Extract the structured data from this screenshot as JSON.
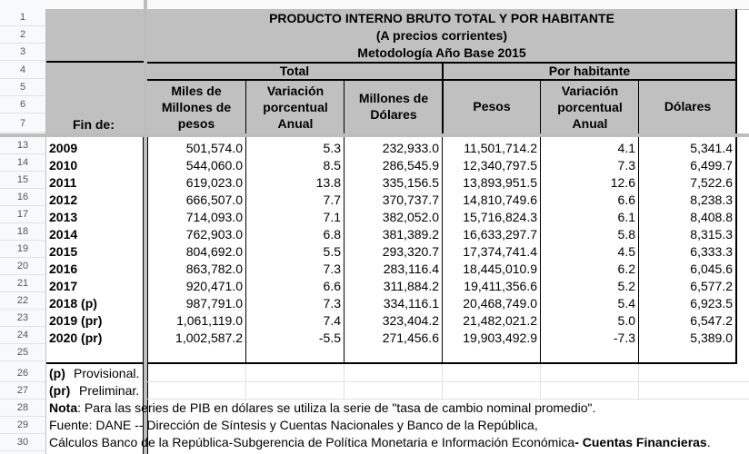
{
  "header": {
    "title1": "PRODUCTO INTERNO BRUTO TOTAL Y POR HABITANTE",
    "title2": "(A precios corrientes)",
    "title3": "Metodología Año Base 2015",
    "group_total": "Total",
    "group_per_capita": "Por habitante",
    "col_year": "Fin de:",
    "col_miles_1": "Miles de",
    "col_miles_2": "Millones de",
    "col_miles_3": "pesos",
    "col_var_1": "Variación",
    "col_var_2": "porcentual",
    "col_var_3": "Anual",
    "col_musd_1": "Millones de",
    "col_musd_2": "Dólares",
    "col_pesos": "Pesos",
    "col_var2_1": "Variación",
    "col_var2_2": "porcentual",
    "col_var2_3": "Anual",
    "col_usd": "Dólares"
  },
  "row_numbers_top": [
    "1",
    "2",
    "3",
    "4",
    "5",
    "6",
    "7"
  ],
  "row_numbers_bottom": [
    "13",
    "14",
    "15",
    "16",
    "17",
    "18",
    "19",
    "20",
    "21",
    "22",
    "23",
    "24",
    "25",
    "26",
    "27",
    "28",
    "29",
    "30"
  ],
  "table": {
    "rows": [
      {
        "year": "2009",
        "miles": "501,574.0",
        "var": "5.3",
        "musd": "232,933.0",
        "pesos": "11,501,714.2",
        "var2": "4.1",
        "usd": "5,341.4"
      },
      {
        "year": "2010",
        "miles": "544,060.0",
        "var": "8.5",
        "musd": "286,545.9",
        "pesos": "12,340,797.5",
        "var2": "7.3",
        "usd": "6,499.7"
      },
      {
        "year": "2011",
        "miles": "619,023.0",
        "var": "13.8",
        "musd": "335,156.5",
        "pesos": "13,893,951.5",
        "var2": "12.6",
        "usd": "7,522.6"
      },
      {
        "year": "2012",
        "miles": "666,507.0",
        "var": "7.7",
        "musd": "370,737.7",
        "pesos": "14,810,749.6",
        "var2": "6.6",
        "usd": "8,238.3"
      },
      {
        "year": "2013",
        "miles": "714,093.0",
        "var": "7.1",
        "musd": "382,052.0",
        "pesos": "15,716,824.3",
        "var2": "6.1",
        "usd": "8,408.8"
      },
      {
        "year": "2014",
        "miles": "762,903.0",
        "var": "6.8",
        "musd": "381,389.2",
        "pesos": "16,633,297.7",
        "var2": "5.8",
        "usd": "8,315.3"
      },
      {
        "year": "2015",
        "miles": "804,692.0",
        "var": "5.5",
        "musd": "293,320.7",
        "pesos": "17,374,741.4",
        "var2": "4.5",
        "usd": "6,333.3"
      },
      {
        "year": "2016",
        "miles": "863,782.0",
        "var": "7.3",
        "musd": "283,116.4",
        "pesos": "18,445,010.9",
        "var2": "6.2",
        "usd": "6,045.6"
      },
      {
        "year": "2017",
        "miles": "920,471.0",
        "var": "6.6",
        "musd": "311,884.2",
        "pesos": "19,411,356.6",
        "var2": "5.2",
        "usd": "6,577.2"
      },
      {
        "year": "2018 (p)",
        "miles": "987,791.0",
        "var": "7.3",
        "musd": "334,116.1",
        "pesos": "20,468,749.0",
        "var2": "5.4",
        "usd": "6,923.5"
      },
      {
        "year": "2019 (pr)",
        "miles": "1,061,119.0",
        "var": "7.4",
        "musd": "323,404.2",
        "pesos": "21,482,021.2",
        "var2": "5.0",
        "usd": "6,547.2"
      },
      {
        "year": "2020 (pr)",
        "miles": "1,002,587.2",
        "var": "-5.5",
        "musd": "271,456.6",
        "pesos": "19,903,492.9",
        "var2": "-7.3",
        "usd": "5,389.0"
      }
    ]
  },
  "notes": {
    "p_label": "(p)",
    "p_text": "Provisional.",
    "pr_label": "(pr)",
    "pr_text": "Preliminar.",
    "nota_label": "Nota",
    "nota_text": ":  Para las series de PIB en dólares se utiliza la serie de  \"tasa de cambio nominal promedio\".",
    "fuente": "Fuente:  DANE -- Dirección de Síntesis y Cuentas Nacionales y Banco de la República,",
    "calculos_text": "Cálculos Banco de la República-Subgerencia de Política Monetaria e Información Económica",
    "calculos_bold": "- Cuentas Financieras",
    "calculos_end": "."
  }
}
